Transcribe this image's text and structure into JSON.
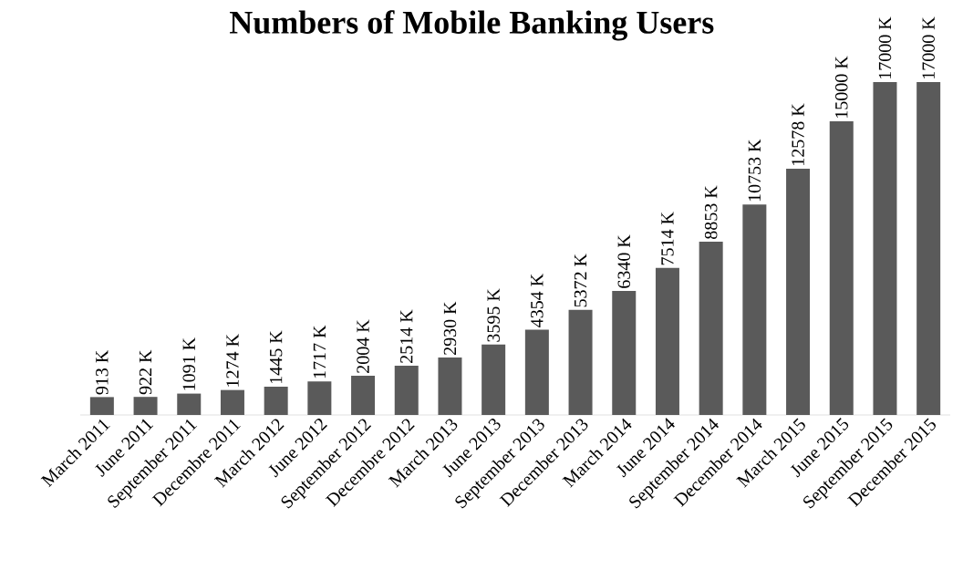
{
  "chart_data": {
    "type": "bar",
    "title": "Numbers of Mobile Banking Users",
    "categories": [
      "March 2011",
      "June 2011",
      "September 2011",
      "Decembre 2011",
      "March 2012",
      "June 2012",
      "September 2012",
      "Decembre 2012",
      "March 2013",
      "June 2013",
      "September 2013",
      "December 2013",
      "March 2014",
      "June 2014",
      "September 2014",
      "December 2014",
      "March 2015",
      "June 2015",
      "September 2015",
      "December 2015"
    ],
    "values": [
      913,
      922,
      1091,
      1274,
      1445,
      1717,
      2004,
      2514,
      2930,
      3595,
      4354,
      5372,
      6340,
      7514,
      8853,
      10753,
      12578,
      15000,
      17000,
      17000
    ],
    "value_labels": [
      "913 K",
      "922 K",
      "1091 K",
      "1274 K",
      "1445 K",
      "1717 K",
      "2004 K",
      "2514 K",
      "2930 K",
      "3595 K",
      "4354 K",
      "5372 K",
      "6340 K",
      "7514 K",
      "8853 K",
      "10753 K",
      "12578 K",
      "15000 K",
      "17000 K",
      "17000 K"
    ],
    "color": "#5a5a5a"
  }
}
